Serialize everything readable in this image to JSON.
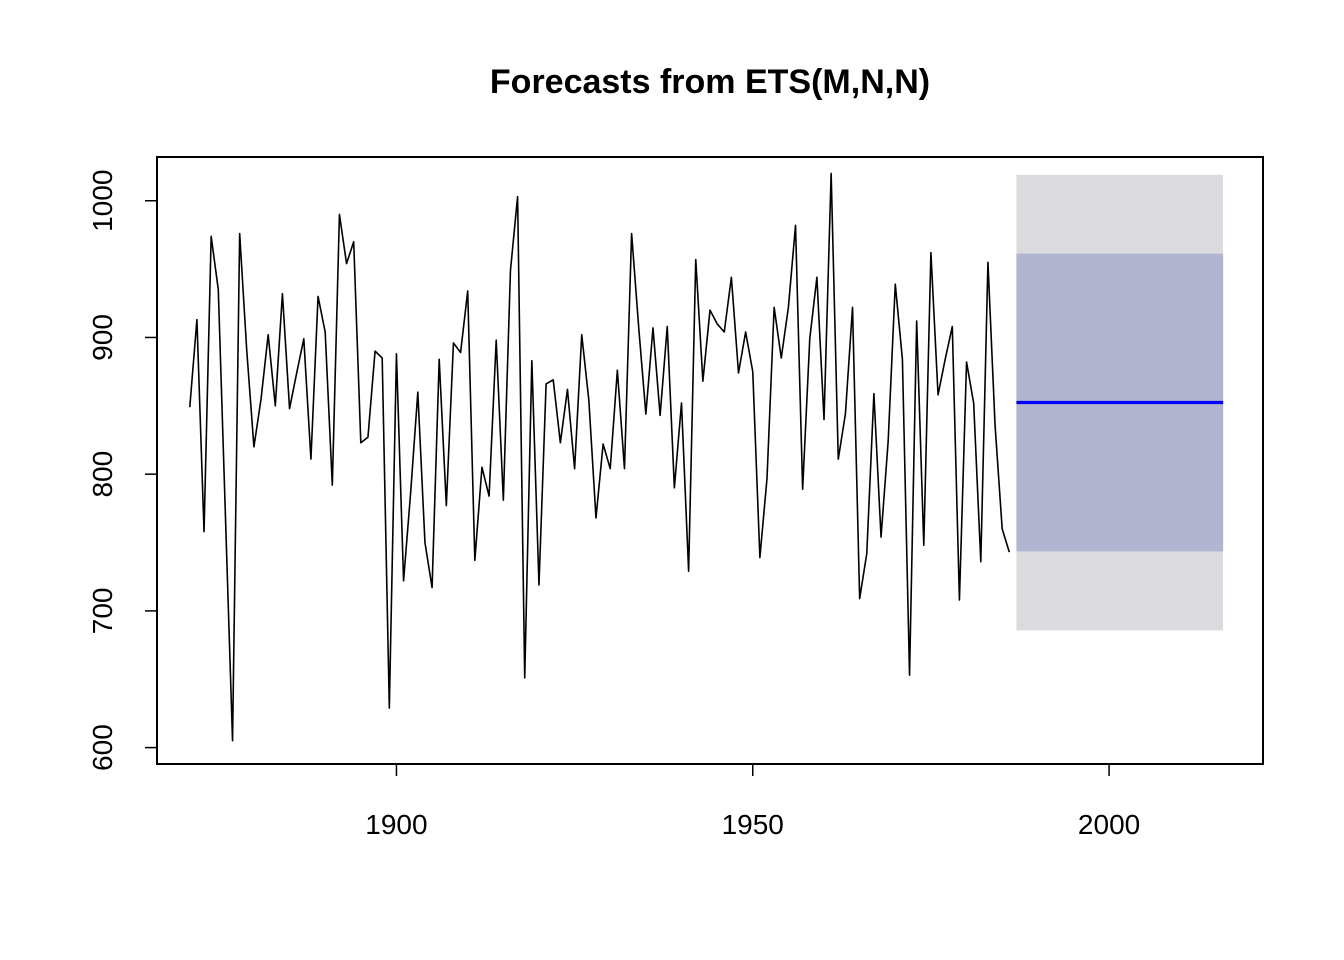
{
  "chart_data": {
    "type": "line",
    "title": "Forecasts from ETS(M,N,N)",
    "xlabel": "",
    "ylabel": "",
    "xlim": [
      1866.4,
      2021.6
    ],
    "ylim": [
      588,
      1032
    ],
    "x_ticks": [
      1900,
      1950,
      2000
    ],
    "x_tick_labels": [
      "1900",
      "1950",
      "2000"
    ],
    "y_ticks": [
      600,
      700,
      800,
      900,
      1000
    ],
    "y_tick_labels": [
      "600",
      "700",
      "800",
      "900",
      "1000"
    ],
    "grid": false,
    "legend": "none",
    "colors": {
      "observed": "#000000",
      "forecast": "#0000ff",
      "band_80": "#b1b5cf",
      "band_95": "#dbdbdf",
      "frame": "#000000"
    },
    "observed": {
      "start": 1871,
      "values": [
        849,
        913,
        758,
        974,
        935,
        770,
        605,
        976,
        890,
        820,
        855,
        902,
        850,
        932,
        848,
        874,
        899,
        811,
        930,
        904,
        792,
        990,
        954,
        970,
        823,
        827,
        890,
        885,
        629,
        888,
        722,
        787,
        860,
        750,
        717,
        884,
        777,
        896,
        889,
        934,
        737,
        805,
        784,
        898,
        781,
        949,
        1003,
        651,
        883,
        719,
        866,
        869,
        823,
        862,
        804,
        902,
        854,
        768,
        822,
        804,
        876,
        804,
        976,
        907,
        844,
        907,
        843,
        908,
        790,
        852,
        729,
        957,
        868,
        920,
        910,
        904,
        944,
        874,
        904,
        875,
        739,
        797,
        922,
        885,
        922,
        982,
        789,
        899,
        944,
        840,
        1020,
        811,
        844,
        922,
        709,
        742,
        859,
        754,
        824,
        939,
        884,
        653,
        912,
        748,
        962,
        858,
        884,
        908,
        708,
        882,
        852,
        736,
        955,
        836,
        760,
        743
      ]
    },
    "forecast": {
      "start": 1987,
      "end": 2016,
      "point": 852.4,
      "lo80": 743.5,
      "hi80": 961.3,
      "lo95": 685.8,
      "hi95": 1019.0
    }
  }
}
